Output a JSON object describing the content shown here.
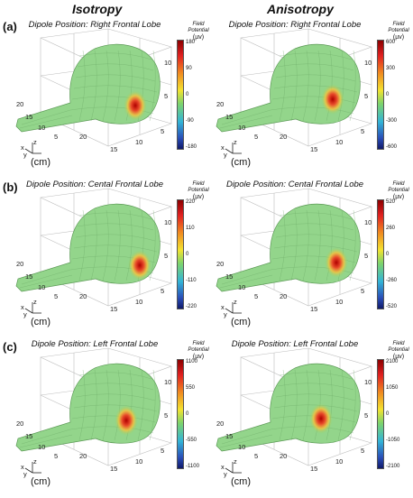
{
  "columns": [
    "Isotropy",
    "Anisotropy"
  ],
  "rows": [
    {
      "label": "(a)",
      "panels": [
        {
          "title": "Dipole Position: Right Frontal Lobe",
          "ticks": [
            "180",
            "90",
            "0",
            "-90",
            "-180"
          ],
          "hot": [
            140,
            95
          ]
        },
        {
          "title": "Dipole Position: Right Frontal Lobe",
          "ticks": [
            "600",
            "300",
            "0",
            "-300",
            "-600"
          ],
          "hot": [
            137,
            88
          ]
        }
      ]
    },
    {
      "label": "(b)",
      "panels": [
        {
          "title": "Dipole Position: Cental Frontal Lobe",
          "ticks": [
            "220",
            "110",
            "0",
            "-110",
            "-220"
          ],
          "hot": [
            145,
            95
          ]
        },
        {
          "title": "Dipole Position: Cental Frontal Lobe",
          "ticks": [
            "520",
            "260",
            "0",
            "-260",
            "-520"
          ],
          "hot": [
            141,
            92
          ]
        }
      ]
    },
    {
      "label": "(c)",
      "panels": [
        {
          "title": "Dipole Position: Left Frontal Lobe",
          "ticks": [
            "1100",
            "550",
            "0",
            "-550",
            "-1100"
          ],
          "hot": [
            130,
            90
          ]
        },
        {
          "title": "Dipole Position: Left Frontal Lobe",
          "ticks": [
            "2100",
            "1050",
            "0",
            "-1050",
            "-2100"
          ],
          "hot": [
            124,
            88
          ]
        }
      ]
    }
  ],
  "colorbar": {
    "title_line1": "Field",
    "title_line2": "Potential",
    "unit": "(µv)"
  },
  "axes": {
    "z_ticks": [
      "10",
      "5"
    ],
    "x_ticks": [
      "20",
      "15",
      "10",
      "5"
    ],
    "y_ticks": [
      "20",
      "15",
      "10",
      "5"
    ],
    "triad": {
      "x": "x",
      "y": "y",
      "z": "z"
    }
  },
  "units_label": "(cm)"
}
